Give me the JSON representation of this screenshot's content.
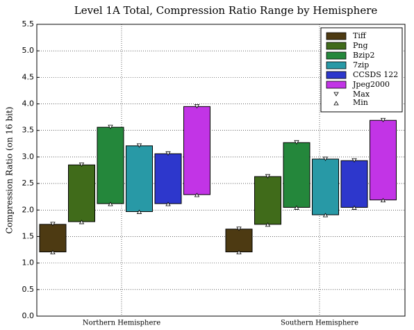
{
  "chart_data": {
    "type": "range_bar",
    "title": "Level 1A Total, Compression Ratio Range by Hemisphere",
    "y_label": "Compression Ratio (on 16 bit)",
    "categories": [
      "Northern Hemisphere",
      "Southern Hemisphere"
    ],
    "series": [
      {
        "name": "Tiff",
        "color": "#4d3a12",
        "max": [
          1.73,
          1.64
        ],
        "min": [
          1.21,
          1.21
        ]
      },
      {
        "name": "Png",
        "color": "#406b1a",
        "max": [
          2.85,
          2.63
        ],
        "min": [
          1.78,
          1.73
        ]
      },
      {
        "name": "Bzip2",
        "color": "#24873b",
        "max": [
          3.56,
          3.27
        ],
        "min": [
          2.12,
          2.05
        ]
      },
      {
        "name": "7zip",
        "color": "#2899a6",
        "max": [
          3.21,
          2.96
        ],
        "min": [
          1.97,
          1.91
        ]
      },
      {
        "name": "CCSDS 122",
        "color": "#2d37cc",
        "max": [
          3.06,
          2.93
        ],
        "min": [
          2.12,
          2.05
        ]
      },
      {
        "name": "Jpeg2000",
        "color": "#c234e6",
        "max": [
          3.95,
          3.69
        ],
        "min": [
          2.29,
          2.19
        ]
      }
    ],
    "max_label": "Max",
    "min_label": "Min",
    "ylim": [
      0,
      5.5
    ],
    "yticks": [
      {
        "value": 0,
        "label": "0.0"
      },
      {
        "value": 0.5,
        "label": "0.5"
      },
      {
        "value": 1,
        "label": "1.0"
      },
      {
        "value": 1.5,
        "label": "1.5"
      },
      {
        "value": 2,
        "label": "2.0"
      },
      {
        "value": 2.5,
        "label": "2.5"
      },
      {
        "value": 3,
        "label": "3.0"
      },
      {
        "value": 3.5,
        "label": "3.5"
      },
      {
        "value": 4,
        "label": "4.0"
      },
      {
        "value": 4.5,
        "label": "4.5"
      },
      {
        "value": 5,
        "label": "5.0"
      },
      {
        "value": 5.5,
        "label": "5.5"
      }
    ],
    "grid": true,
    "legend": "upper right"
  }
}
